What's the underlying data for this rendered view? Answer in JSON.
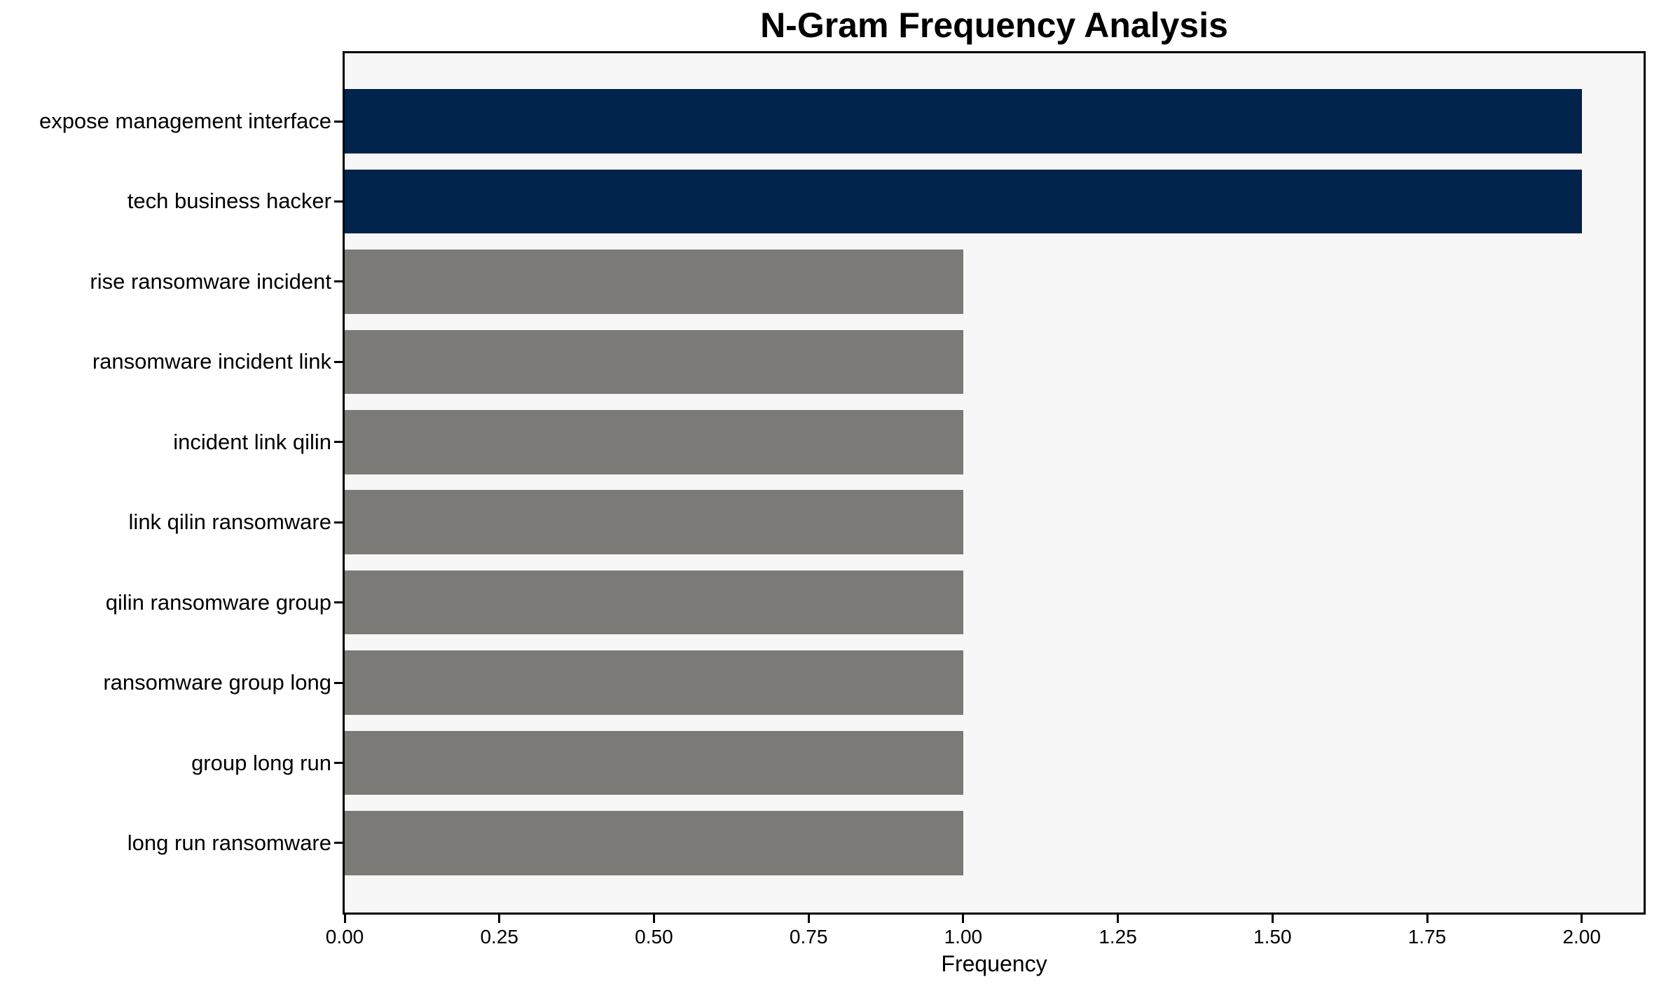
{
  "chart_data": {
    "type": "bar",
    "orientation": "horizontal",
    "title": "N-Gram Frequency Analysis",
    "xlabel": "Frequency",
    "ylabel": "",
    "categories": [
      "expose management interface",
      "tech business hacker",
      "rise ransomware incident",
      "ransomware incident link",
      "incident link qilin",
      "link qilin ransomware",
      "qilin ransomware group",
      "ransomware group long",
      "group long run",
      "long run ransomware"
    ],
    "values": [
      2,
      2,
      1,
      1,
      1,
      1,
      1,
      1,
      1,
      1
    ],
    "bar_colors": [
      "#02234c",
      "#02234c",
      "#7b7a77",
      "#7b7a77",
      "#7b7a77",
      "#7b7a77",
      "#7b7a77",
      "#7b7a77",
      "#7b7a77",
      "#7b7a77"
    ],
    "xlim": [
      0,
      2.1
    ],
    "xtick_values": [
      0,
      0.25,
      0.5,
      0.75,
      1.0,
      1.25,
      1.5,
      1.75,
      2.0
    ],
    "xtick_labels": [
      "0.00",
      "0.25",
      "0.50",
      "0.75",
      "1.00",
      "1.25",
      "1.50",
      "1.75",
      "2.00"
    ],
    "grid": false,
    "legend": false,
    "colors": {
      "highlight_bar": "#02234c",
      "default_bar": "#7b7a77",
      "plot_background": "#f7f7f7",
      "figure_background": "#ffffff",
      "axis": "#000000",
      "text": "#000000"
    }
  }
}
